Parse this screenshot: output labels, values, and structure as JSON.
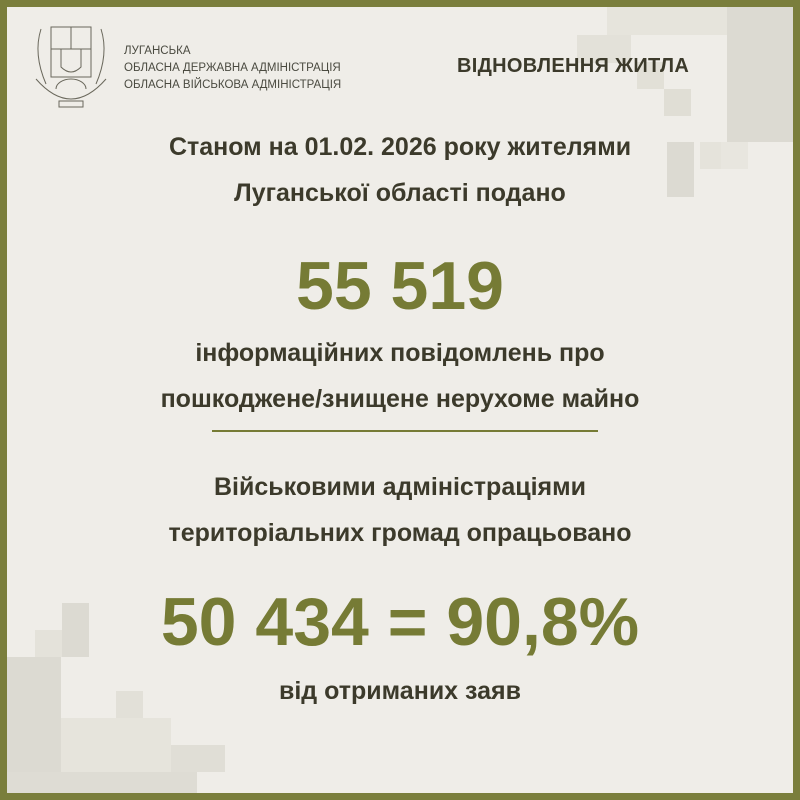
{
  "header": {
    "org_lines": [
      "ЛУГАНСЬКА",
      "ОБЛАСНА ДЕРЖАВНА АДМІНІСТРАЦІЯ",
      "ОБЛАСНА ВІЙСЬКОВА АДМІНІСТРАЦІЯ"
    ],
    "title": "ВІДНОВЛЕННЯ ЖИТЛА"
  },
  "body": {
    "intro_line1": "Станом на 01.02. 2026 року жителями",
    "intro_line2": "Луганської області подано",
    "submitted_count": "55 519",
    "desc_line1": "інформаційних повідомлень про",
    "desc_line2": "пошкоджене/знищене нерухоме майно",
    "processed_line1": "Військовими адміністраціями",
    "processed_line2": "територіальних громад опрацьовано",
    "processed_result": "50 434 = 90,8%",
    "footer": "від отриманих заяв"
  },
  "colors": {
    "border": "#7a7e3c",
    "background": "#efede8",
    "accent": "#767b35",
    "text": "#3c3a2b"
  }
}
